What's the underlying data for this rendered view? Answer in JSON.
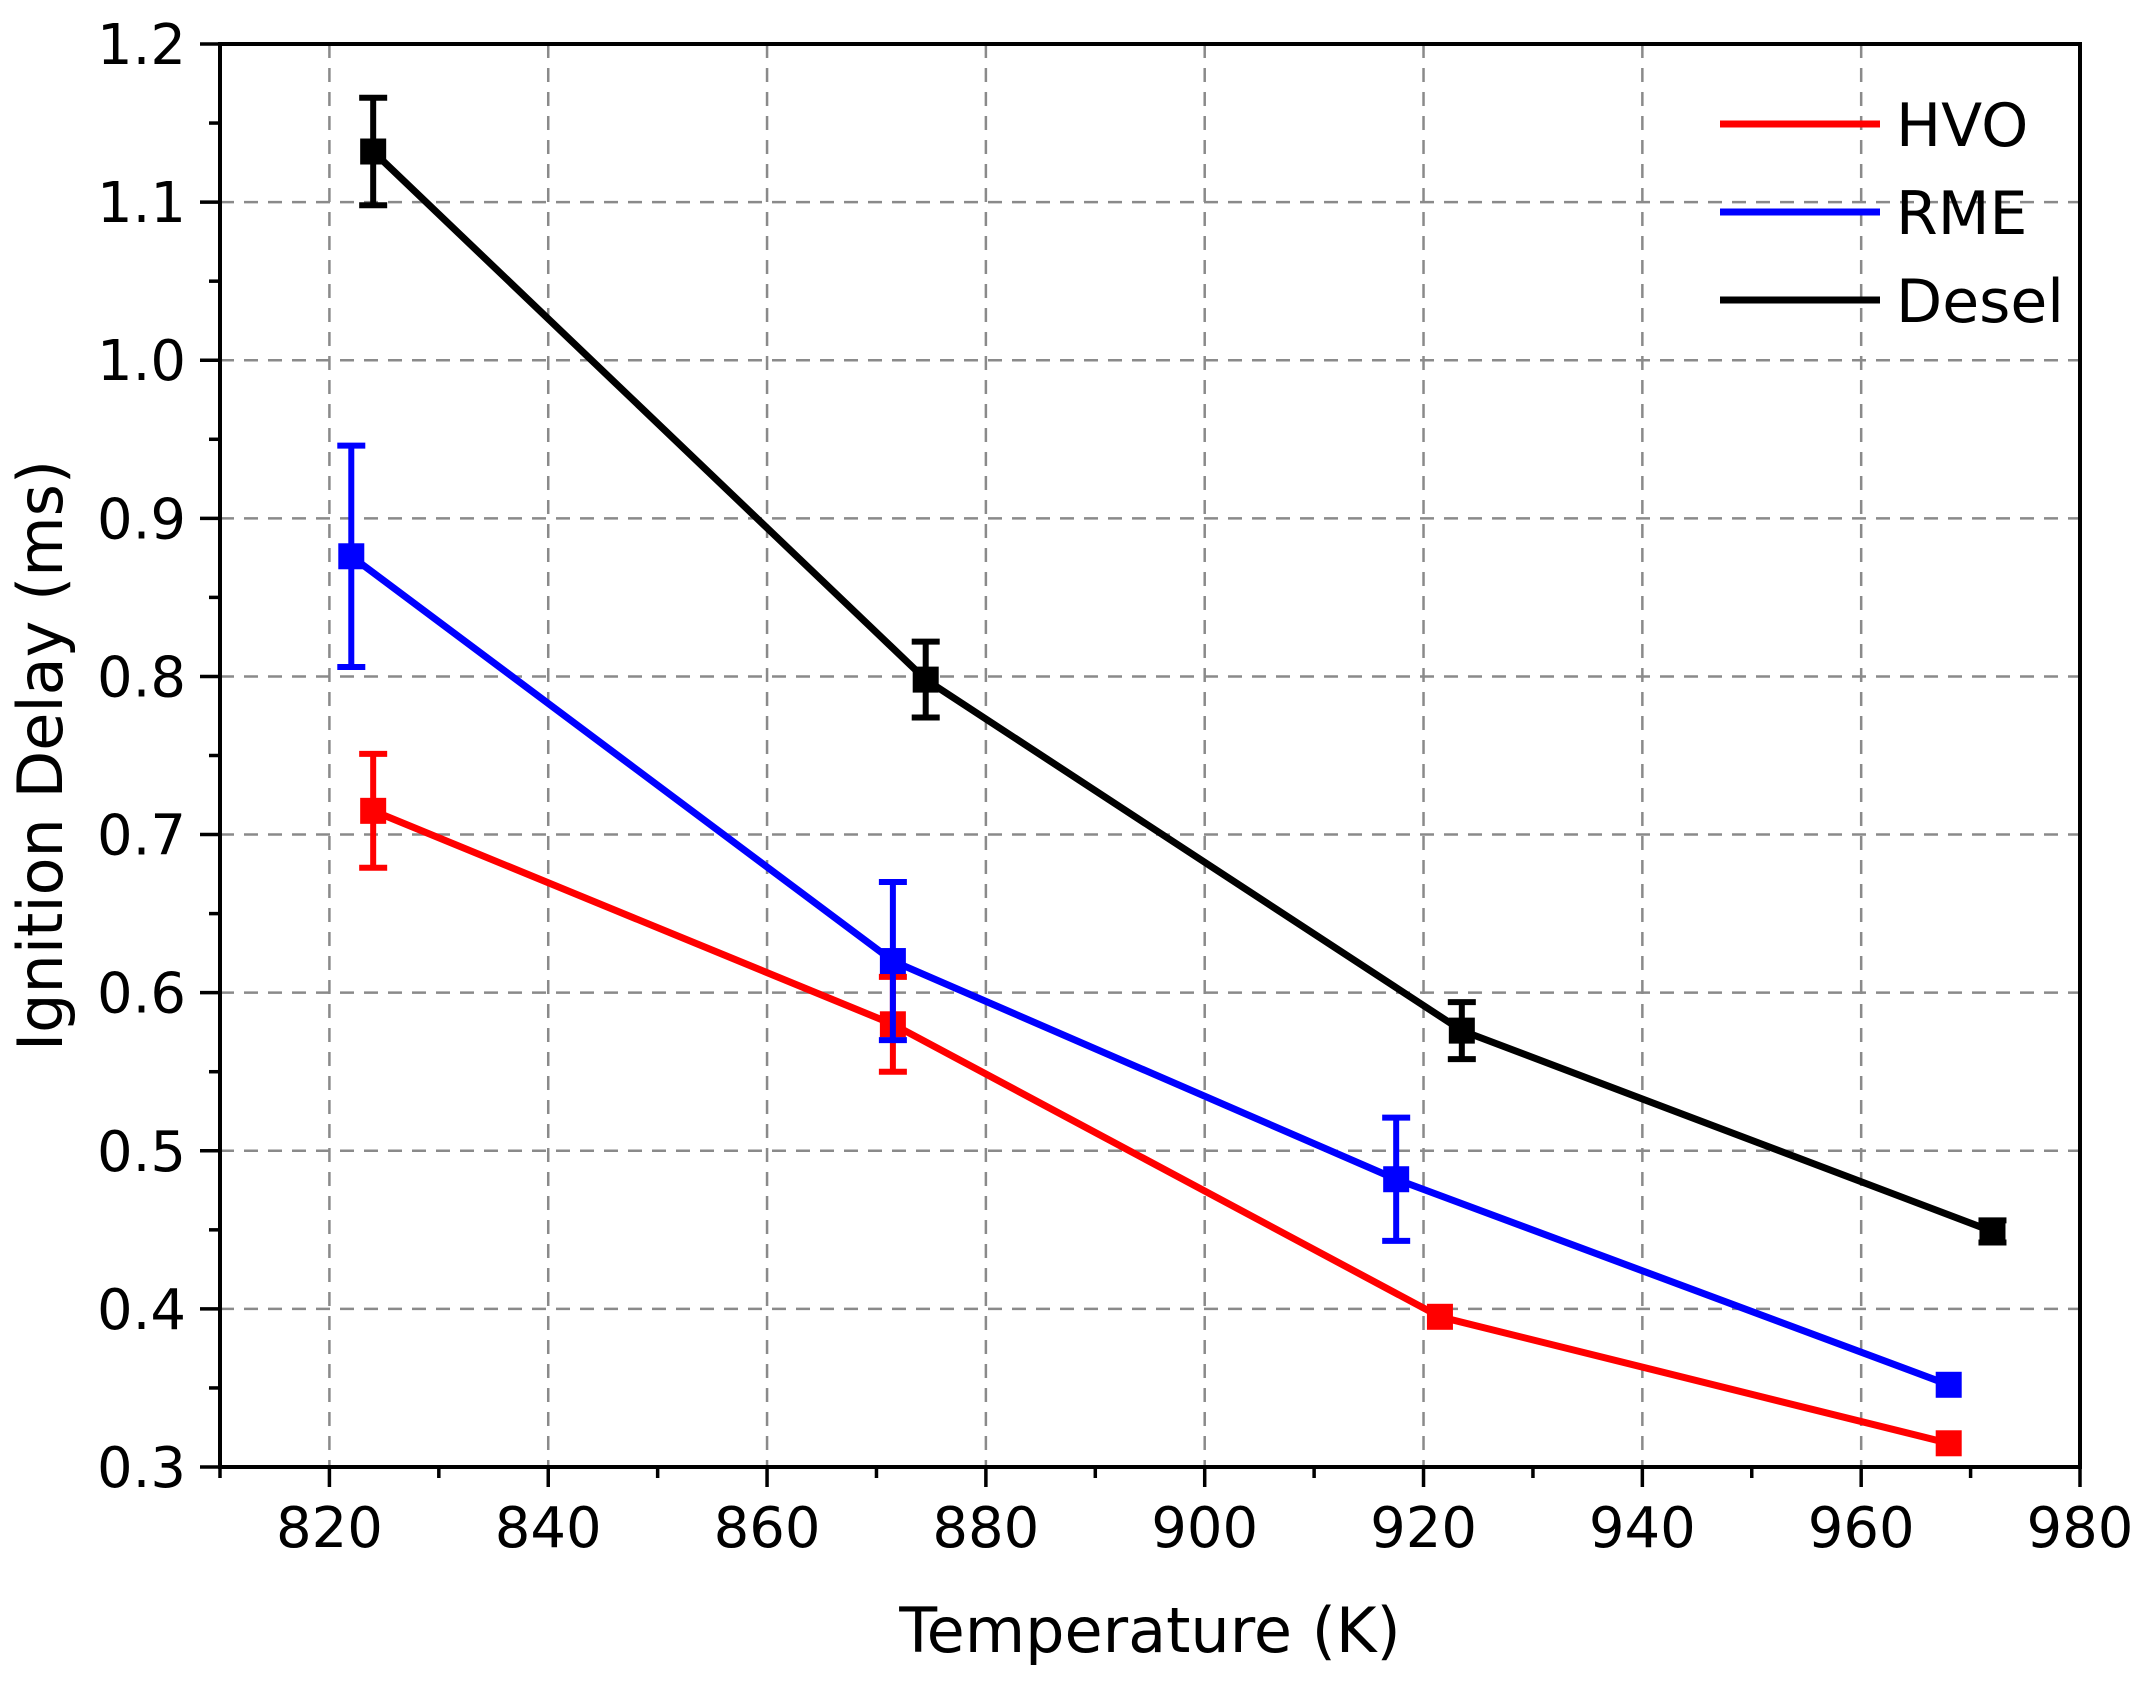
{
  "chart_data": {
    "type": "line",
    "title": "",
    "xlabel": "Temperature (K)",
    "ylabel": "Ignition Delay (ms)",
    "xlim": [
      810,
      980
    ],
    "ylim": [
      0.3,
      1.2
    ],
    "xticks": [
      820,
      840,
      860,
      880,
      900,
      920,
      940,
      960,
      980
    ],
    "xtick_labels": [
      "820",
      "840",
      "860",
      "880",
      "900",
      "920",
      "940",
      "960",
      "980"
    ],
    "yticks": [
      0.3,
      0.4,
      0.5,
      0.6,
      0.7,
      0.8,
      0.9,
      1.0,
      1.1,
      1.2
    ],
    "ytick_labels": [
      "0.3",
      "0.4",
      "0.5",
      "0.6",
      "0.7",
      "0.8",
      "0.9",
      "1.0",
      "1.1",
      "1.2"
    ],
    "grid": true,
    "legend_position": "top-right",
    "series": [
      {
        "name": "HVO",
        "color": "#ff0000",
        "x": [
          824,
          871.5,
          921.5,
          968
        ],
        "y": [
          0.715,
          0.58,
          0.395,
          0.315
        ],
        "err": [
          0.036,
          0.03,
          0,
          0
        ]
      },
      {
        "name": "RME",
        "color": "#0000ff",
        "x": [
          822,
          871.5,
          917.5,
          968
        ],
        "y": [
          0.876,
          0.62,
          0.482,
          0.352
        ],
        "err": [
          0.07,
          0.05,
          0.039,
          0
        ]
      },
      {
        "name": "Desel",
        "color": "#000000",
        "x": [
          824,
          874.5,
          923.5,
          972
        ],
        "y": [
          1.132,
          0.798,
          0.576,
          0.449
        ],
        "err": [
          0.034,
          0.024,
          0.018,
          0.007
        ]
      }
    ]
  }
}
